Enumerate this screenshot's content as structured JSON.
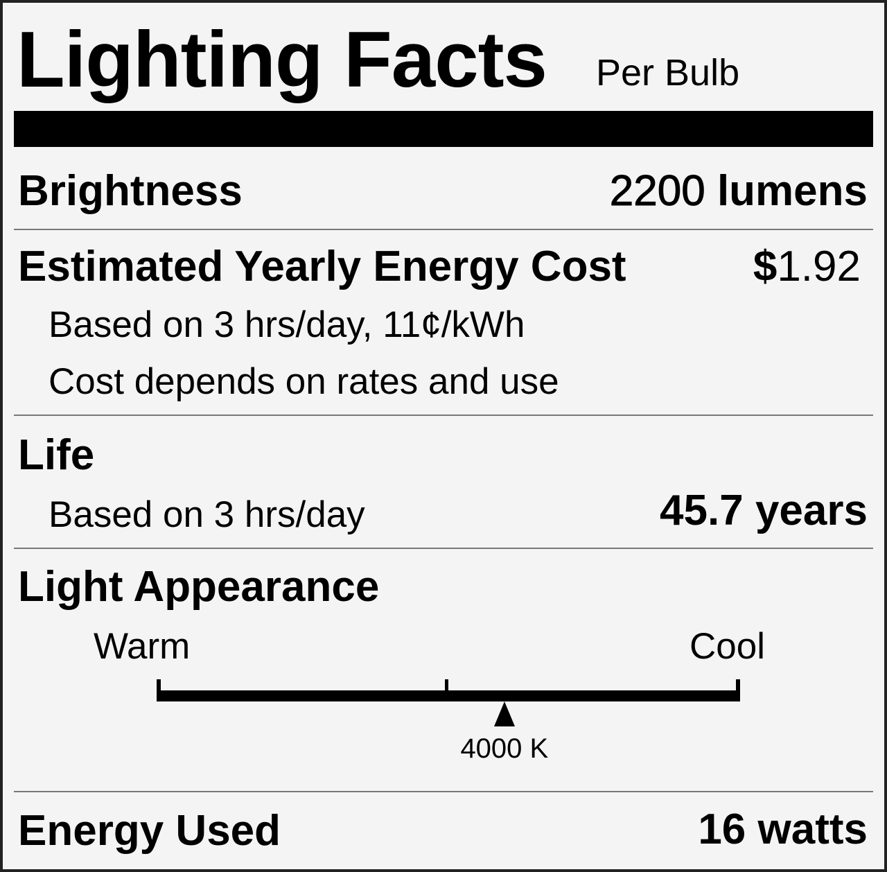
{
  "label": {
    "title": "Lighting Facts",
    "subtitle": "Per Bulb",
    "brightness": {
      "label": "Brightness",
      "value": "2200",
      "unit": "lumens"
    },
    "energy_cost": {
      "label": "Estimated Yearly Energy Cost",
      "currency": "$",
      "value": "1.92",
      "note1": "Based on 3 hrs/day, 11¢/kWh",
      "note2": "Cost depends on rates and use"
    },
    "life": {
      "label": "Life",
      "note": "Based on 3 hrs/day",
      "value": "45.7",
      "unit": "years"
    },
    "appearance": {
      "label": "Light Appearance",
      "warm_label": "Warm",
      "cool_label": "Cool",
      "marker_label": "4000 K",
      "marker_fraction": 0.596
    },
    "energy_used": {
      "label": "Energy Used",
      "value": "16",
      "unit": "watts"
    }
  }
}
